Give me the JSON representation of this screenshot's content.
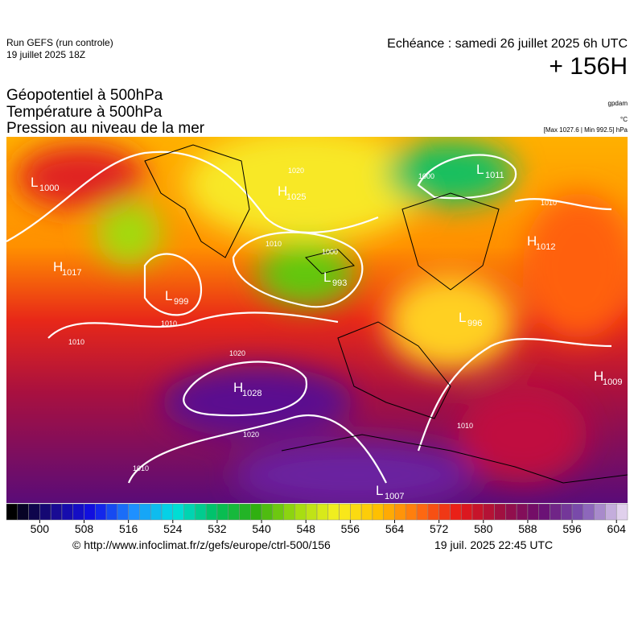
{
  "header": {
    "run": "Run GEFS (run controle)",
    "date": "19 juillet 2025 18Z",
    "valid": "Echéance : samedi 26 juillet 2025 6h UTC",
    "lead": "+ 156H",
    "titles": [
      "Géopotentiel à 500hPa",
      "Température à 500hPa",
      "Pression au niveau de la mer"
    ],
    "unit_geo": "gpdam",
    "unit_temp": "°C",
    "range": "[Max 1027.6 | Min 992.5] hPa"
  },
  "centers": [
    {
      "letter": "L",
      "value": 1000
    },
    {
      "letter": "H",
      "value": 1025
    },
    {
      "letter": "L",
      "value": 1011
    },
    {
      "letter": "H",
      "value": 1017
    },
    {
      "letter": "L",
      "value": 999
    },
    {
      "letter": "L",
      "value": 993
    },
    {
      "letter": "H",
      "value": 1012
    },
    {
      "letter": "L",
      "value": 996
    },
    {
      "letter": "H",
      "value": 1028
    },
    {
      "letter": "H",
      "value": 1009
    },
    {
      "letter": "L",
      "value": 1007
    }
  ],
  "isobar_labels": [
    1020,
    1010,
    1000,
    1010,
    1010,
    1020,
    1020,
    1010,
    1010,
    1000,
    1010
  ],
  "colorbar": {
    "lim": [
      494,
      606
    ],
    "ticks": [
      500,
      508,
      516,
      524,
      532,
      540,
      548,
      556,
      564,
      572,
      580,
      588,
      596,
      604
    ],
    "colors": [
      "#000000",
      "#1a0a8c",
      "#1010e6",
      "#1e90ff",
      "#00e0e0",
      "#00c060",
      "#30b010",
      "#a0dc10",
      "#f8f020",
      "#ffc000",
      "#ff7010",
      "#e81818",
      "#a01040",
      "#6a0c70",
      "#7a50b0",
      "#e0d0ec"
    ]
  },
  "footer": {
    "url": "© http://www.infoclimat.fr/z/gefs/europe/ctrl-500/156",
    "time": "19 juil. 2025 22:45 UTC"
  }
}
